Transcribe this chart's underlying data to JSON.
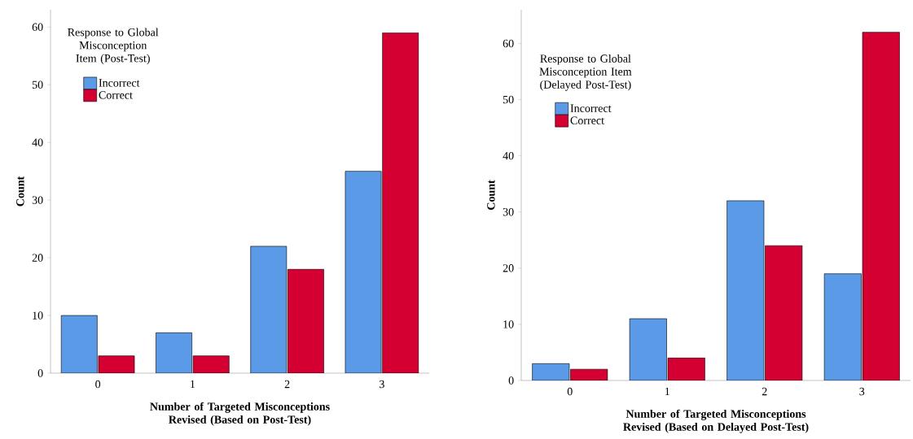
{
  "chart_data": [
    {
      "type": "bar",
      "xlabel": "Number of Targeted Misconceptions Revised (Based on Post-Test)",
      "ylabel": "Count",
      "legend_title": "Response to Global Misconception Item (Post-Test)",
      "legend": "top left",
      "categories": [
        "0",
        "1",
        "2",
        "3"
      ],
      "ylim": [
        0,
        63
      ],
      "yticks": [
        0,
        10,
        20,
        30,
        40,
        50,
        60
      ],
      "series": [
        {
          "name": "Incorrect",
          "color": "#5a9ae6",
          "values": [
            10,
            7,
            22,
            35
          ]
        },
        {
          "name": "Correct",
          "color": "#d40031",
          "values": [
            3,
            3,
            18,
            59
          ]
        }
      ]
    },
    {
      "type": "bar",
      "xlabel": "Number of Targeted Misconceptions Revised (Based on Delayed Post-Test)",
      "ylabel": "Count",
      "legend_title": "Response to Global Misconception Item (Delayed Post-Test)",
      "legend": "top left",
      "categories": [
        "0",
        "1",
        "2",
        "3"
      ],
      "ylim": [
        0,
        66
      ],
      "yticks": [
        0,
        10,
        20,
        30,
        40,
        50,
        60
      ],
      "series": [
        {
          "name": "Incorrect",
          "color": "#5a9ae6",
          "values": [
            3,
            11,
            32,
            19
          ]
        },
        {
          "name": "Correct",
          "color": "#d40031",
          "values": [
            2,
            4,
            24,
            62
          ]
        }
      ]
    }
  ]
}
